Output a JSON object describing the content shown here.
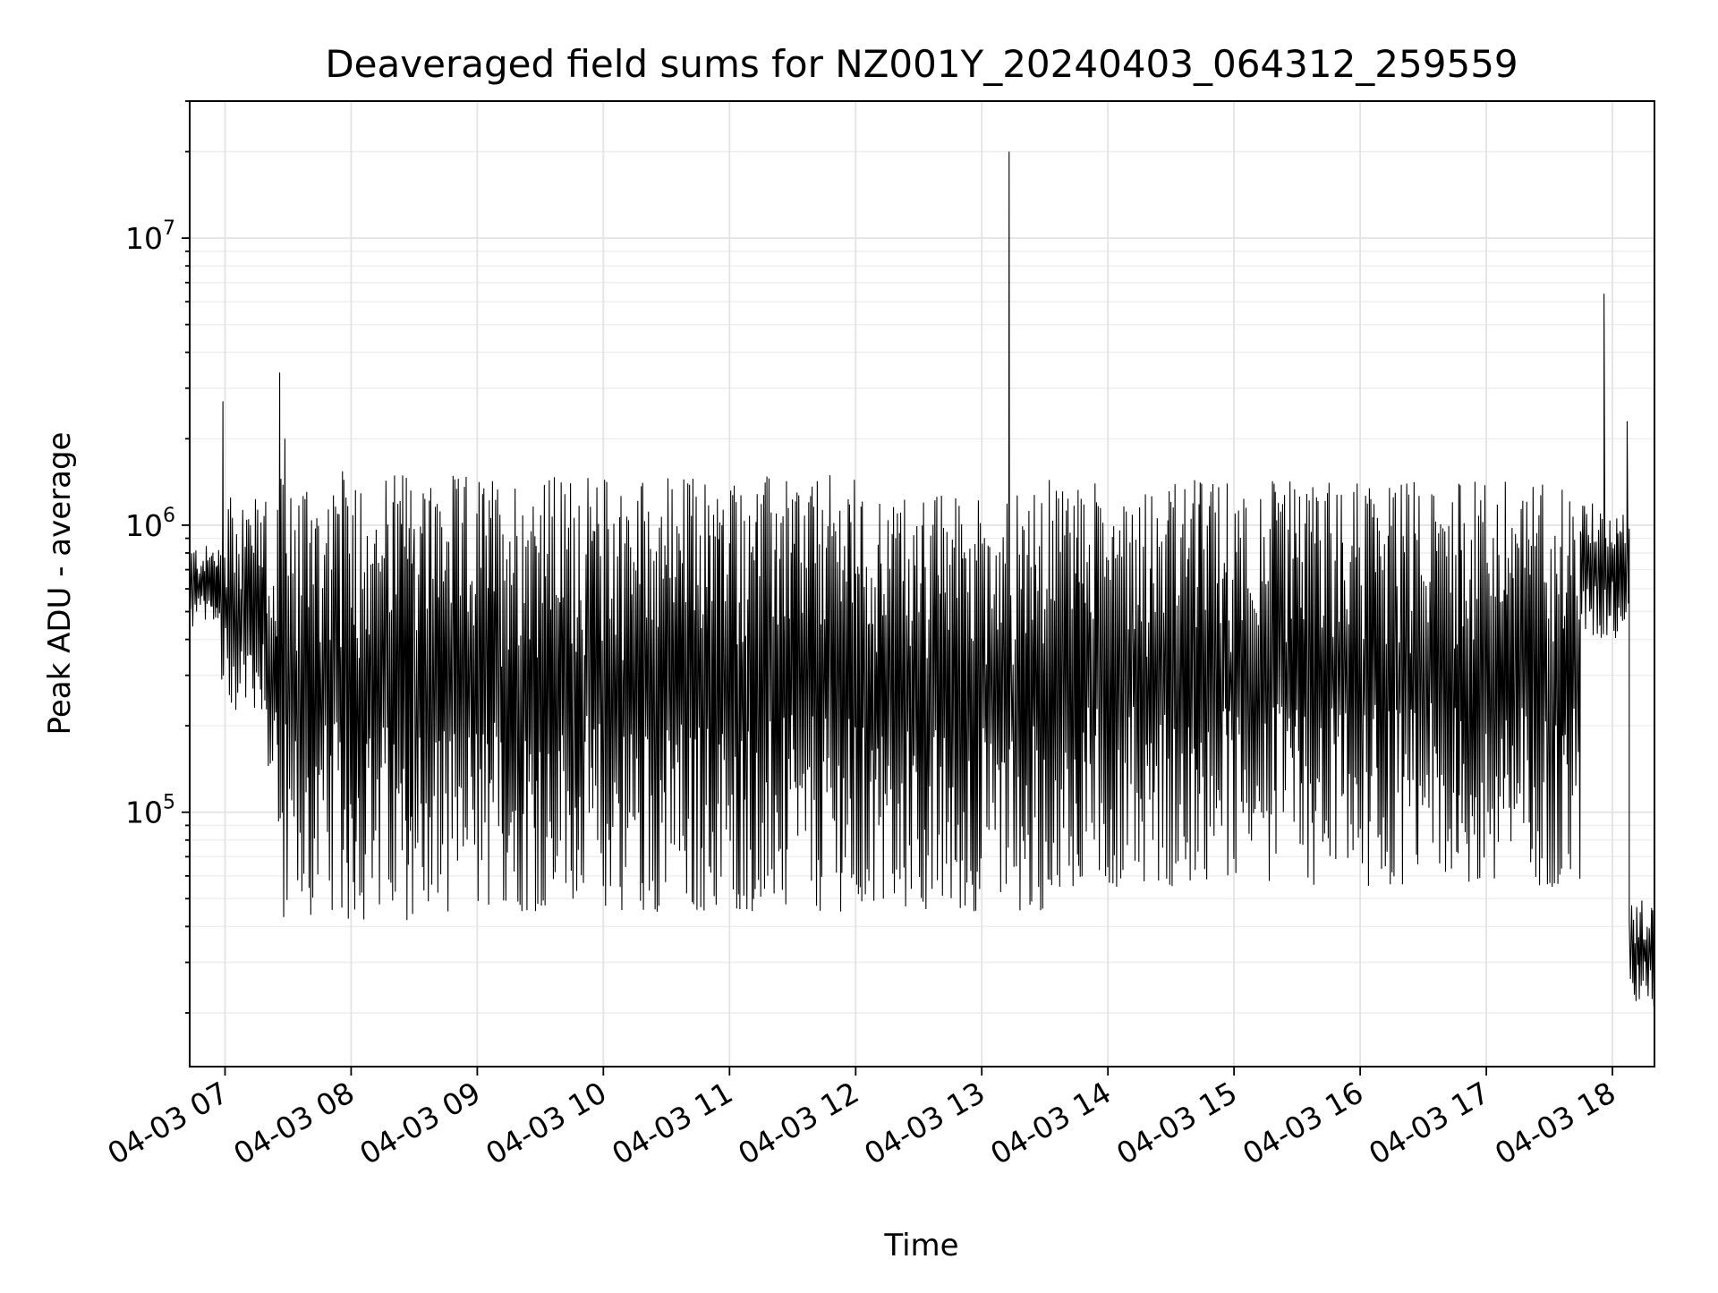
{
  "chart_data": {
    "type": "line",
    "title": "Deaveraged field sums for NZ001Y_20240403_064312_259559",
    "xlabel": "Time",
    "ylabel": "Peak ADU - average",
    "yscale": "log",
    "xlim": [
      "2024-04-03 06:43:12",
      "2024-04-03 18:20:00"
    ],
    "ylim": [
      13000,
      30000000
    ],
    "grid": true,
    "x_ticks": [
      "04-03 07",
      "04-03 08",
      "04-03 09",
      "04-03 10",
      "04-03 11",
      "04-03 12",
      "04-03 13",
      "04-03 14",
      "04-03 15",
      "04-03 16",
      "04-03 17",
      "04-03 18"
    ],
    "y_ticks": [
      {
        "value": 100000,
        "base": "10",
        "exponent": "5"
      },
      {
        "value": 1000000,
        "base": "10",
        "exponent": "6"
      },
      {
        "value": 10000000,
        "base": "10",
        "exponent": "7"
      }
    ],
    "series_color": "#000000",
    "segments": [
      {
        "start": "2024-04-03 06:43:12",
        "end": "2024-04-03 06:58:00",
        "low": 430000,
        "high": 850000
      },
      {
        "start": "2024-04-03 06:58:00",
        "end": "2024-04-03 07:20:00",
        "low": 220000,
        "high": 1250000
      },
      {
        "start": "2024-04-03 07:20:00",
        "end": "2024-04-03 07:25:00",
        "low": 130000,
        "high": 700000
      },
      {
        "start": "2024-04-03 07:25:00",
        "end": "2024-04-03 08:30:00",
        "low": 42000,
        "high": 1550000
      },
      {
        "start": "2024-04-03 08:30:00",
        "end": "2024-04-03 12:00:00",
        "low": 45000,
        "high": 1500000
      },
      {
        "start": "2024-04-03 12:00:00",
        "end": "2024-04-03 13:30:00",
        "low": 45000,
        "high": 1300000
      },
      {
        "start": "2024-04-03 13:30:00",
        "end": "2024-04-03 17:45:00",
        "low": 55000,
        "high": 1450000
      },
      {
        "start": "2024-04-03 17:45:00",
        "end": "2024-04-03 18:08:00",
        "low": 400000,
        "high": 1200000
      },
      {
        "start": "2024-04-03 18:08:00",
        "end": "2024-04-03 18:20:00",
        "low": 20000,
        "high": 50000
      }
    ],
    "spikes": [
      {
        "time": "2024-04-03 06:59:00",
        "value": 2700000
      },
      {
        "time": "2024-04-03 07:26:00",
        "value": 3400000
      },
      {
        "time": "2024-04-03 07:28:30",
        "value": 2000000
      },
      {
        "time": "2024-04-03 13:13:00",
        "value": 20000000
      },
      {
        "time": "2024-04-03 17:56:00",
        "value": 6400000
      },
      {
        "time": "2024-04-03 18:07:00",
        "value": 2300000
      }
    ]
  }
}
